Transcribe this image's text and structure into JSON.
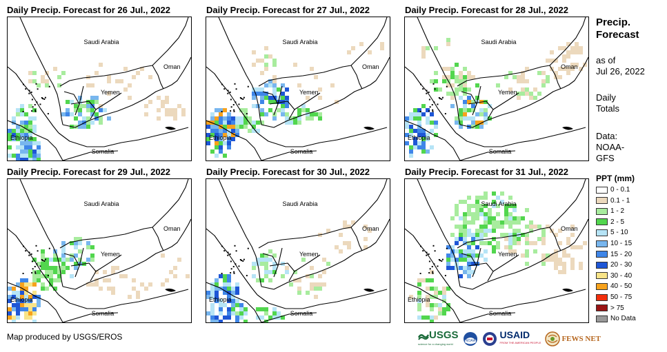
{
  "panels": [
    {
      "title": "Daily Precip. Forecast for 26 Jul., 2022"
    },
    {
      "title": "Daily Precip. Forecast for 27 Jul., 2022"
    },
    {
      "title": "Daily Precip. Forecast for 28 Jul., 2022"
    },
    {
      "title": "Daily Precip. Forecast for 29 Jul., 2022"
    },
    {
      "title": "Daily Precip. Forecast for 30 Jul., 2022"
    },
    {
      "title": "Daily Precip. Forecast for 31 Jul., 2022"
    }
  ],
  "map_labels": {
    "saudi": "Saudi Arabia",
    "oman": "Oman",
    "yemen": "Yemen",
    "ethiopia": "Ethiopia",
    "somalia": "Somalia"
  },
  "legend": {
    "title_line1": "Precip.",
    "title_line2": "Forecast",
    "asof_line1": "as of",
    "asof_line2": "Jul 26, 2022",
    "daily_line1": "Daily",
    "daily_line2": "Totals",
    "data_line1": "Data:",
    "data_line2": "NOAA-",
    "data_line3": "GFS",
    "ppt_title": "PPT (mm)",
    "classes": [
      {
        "label": "0 - 0.1",
        "color": "#ffffff"
      },
      {
        "label": "0.1 - 1",
        "color": "#ecd9bd"
      },
      {
        "label": "1 - 2",
        "color": "#a8ec9e"
      },
      {
        "label": "2 - 5",
        "color": "#52d64e"
      },
      {
        "label": "5 - 10",
        "color": "#b6e4f6"
      },
      {
        "label": "10 - 15",
        "color": "#78b6ee"
      },
      {
        "label": "15 - 20",
        "color": "#3f86e8"
      },
      {
        "label": "20 - 30",
        "color": "#1e56d6"
      },
      {
        "label": "30 - 40",
        "color": "#f8e488"
      },
      {
        "label": "40 - 50",
        "color": "#f7a21c"
      },
      {
        "label": "50 - 75",
        "color": "#f22e0c"
      },
      {
        "label": "> 75",
        "color": "#9a1414"
      },
      {
        "label": "No Data",
        "color": "#999999"
      }
    ]
  },
  "footer": {
    "credit": "Map produced by USGS/EROS",
    "logo_usgs": "USGS",
    "logo_usgs_tagline": "science for a changing world",
    "logo_noaa": "NOAA",
    "logo_usaid": "USAID",
    "logo_usaid_tagline": "FROM THE AMERICAN PEOPLE",
    "logo_fews": "FEWS NET"
  }
}
